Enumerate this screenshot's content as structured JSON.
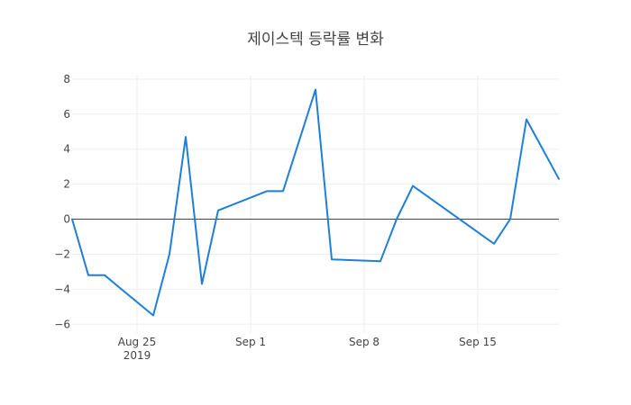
{
  "chart_data": {
    "type": "line",
    "title": "제이스텍 등락률 변화",
    "xlabel": "",
    "ylabel": "",
    "x_axis": {
      "ticks": [
        {
          "date": "2019-08-25",
          "label": "Aug 25",
          "sublabel": "2019"
        },
        {
          "date": "2019-09-01",
          "label": "Sep 1",
          "sublabel": ""
        },
        {
          "date": "2019-09-08",
          "label": "Sep 8",
          "sublabel": ""
        },
        {
          "date": "2019-09-15",
          "label": "Sep 15",
          "sublabel": ""
        }
      ],
      "range": [
        "2019-08-21",
        "2019-09-20"
      ]
    },
    "y_axis": {
      "ticks": [
        {
          "value": 8,
          "label": "8"
        },
        {
          "value": 6,
          "label": "6"
        },
        {
          "value": 4,
          "label": "4"
        },
        {
          "value": 2,
          "label": "2"
        },
        {
          "value": 0,
          "label": "0"
        },
        {
          "value": -2,
          "label": "−2"
        },
        {
          "value": -4,
          "label": "−4"
        },
        {
          "value": -6,
          "label": "−6"
        }
      ],
      "range": [
        -6.5,
        8.2
      ]
    },
    "grid": true,
    "zero_line": true,
    "series": [
      {
        "color": "#1f7fd8",
        "points": [
          {
            "x": "2019-08-21",
            "y": 0.0
          },
          {
            "x": "2019-08-22",
            "y": -3.2
          },
          {
            "x": "2019-08-23",
            "y": -3.2
          },
          {
            "x": "2019-08-26",
            "y": -5.5
          },
          {
            "x": "2019-08-27",
            "y": -2.0
          },
          {
            "x": "2019-08-28",
            "y": 4.7
          },
          {
            "x": "2019-08-29",
            "y": -3.7
          },
          {
            "x": "2019-08-30",
            "y": 0.5
          },
          {
            "x": "2019-09-02",
            "y": 1.6
          },
          {
            "x": "2019-09-03",
            "y": 1.6
          },
          {
            "x": "2019-09-05",
            "y": 7.4
          },
          {
            "x": "2019-09-06",
            "y": -2.3
          },
          {
            "x": "2019-09-09",
            "y": -2.4
          },
          {
            "x": "2019-09-10",
            "y": 0.0
          },
          {
            "x": "2019-09-11",
            "y": 1.9
          },
          {
            "x": "2019-09-16",
            "y": -1.4
          },
          {
            "x": "2019-09-17",
            "y": 0.0
          },
          {
            "x": "2019-09-18",
            "y": 5.7
          },
          {
            "x": "2019-09-20",
            "y": 2.3
          }
        ]
      }
    ]
  }
}
